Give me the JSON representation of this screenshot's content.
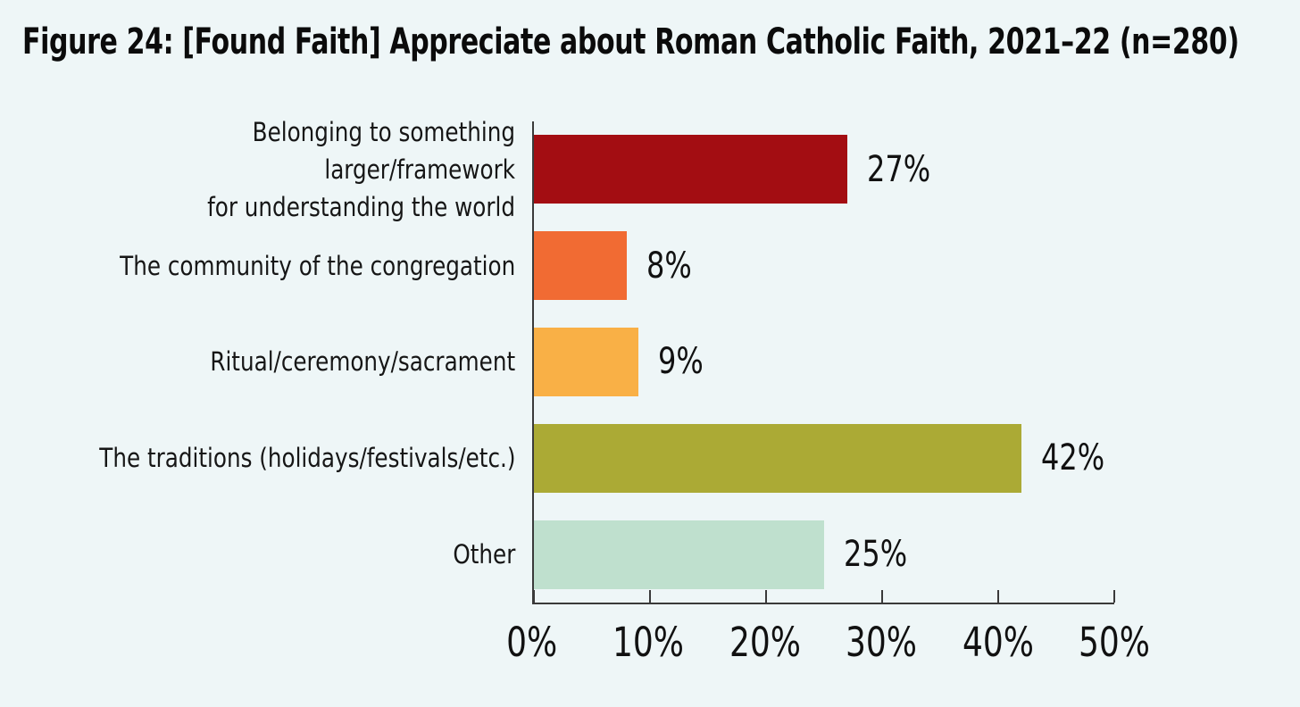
{
  "title": "Figure 24: [Found Faith] Appreciate about Roman Catholic Faith, 2021–22 (n=280)",
  "colors": {
    "background": "#eef6f7",
    "axis": "#3a3a3a",
    "text": "#111111"
  },
  "chart_data": {
    "type": "bar",
    "orientation": "horizontal",
    "title": "Figure 24: [Found Faith] Appreciate about Roman Catholic Faith, 2021–22 (n=280)",
    "sample_size": "n=280",
    "categories": [
      "Belonging to something larger/framework\nfor understanding the world",
      "The community of the congregation",
      "Ritual/ceremony/sacrament",
      "The traditions (holidays/festivals/etc.)",
      "Other"
    ],
    "values": [
      27,
      8,
      9,
      42,
      25
    ],
    "value_labels": [
      "27%",
      "8%",
      "9%",
      "42%",
      "25%"
    ],
    "bar_colors": [
      "#a30d12",
      "#f16b33",
      "#f9b046",
      "#abaa35",
      "#bfe0ce"
    ],
    "xlabel": "",
    "ylabel": "",
    "xlim": [
      0,
      50
    ],
    "xticks": [
      0,
      10,
      20,
      30,
      40,
      50
    ],
    "xtick_labels": [
      "0%",
      "10%",
      "20%",
      "30%",
      "40%",
      "50%"
    ],
    "grid": false,
    "legend": false
  }
}
